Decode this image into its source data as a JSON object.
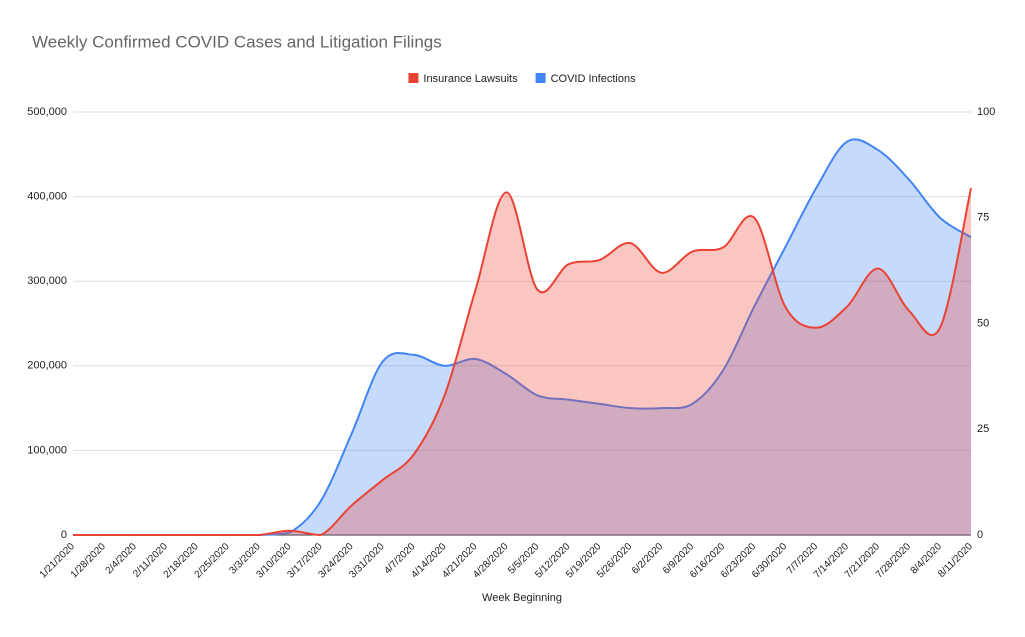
{
  "chart_data": {
    "type": "area",
    "title": "Weekly Confirmed COVID Cases and Litigation Filings",
    "x_label": "Week Beginning",
    "legend": "top",
    "grid": true,
    "categories": [
      "1/21/2020",
      "1/28/2020",
      "2/4/2020",
      "2/11/2020",
      "2/18/2020",
      "2/25/2020",
      "3/3/2020",
      "3/10/2020",
      "3/17/2020",
      "3/24/2020",
      "3/31/2020",
      "4/7/2020",
      "4/14/2020",
      "4/21/2020",
      "4/28/2020",
      "5/5/2020",
      "5/12/2020",
      "5/19/2020",
      "5/26/2020",
      "6/2/2020",
      "6/9/2020",
      "6/16/2020",
      "6/23/2020",
      "6/30/2020",
      "7/7/2020",
      "7/14/2020",
      "7/21/2020",
      "7/28/2020",
      "8/4/2020",
      "8/11/2020"
    ],
    "series": [
      {
        "name": "Insurance Lawsuits",
        "color": "#ea4335",
        "axis": "y2",
        "values": [
          0,
          0,
          0,
          0,
          0,
          0,
          0,
          1,
          0,
          7,
          13,
          19,
          33,
          58,
          81,
          58,
          64,
          65,
          69,
          62,
          67,
          68,
          75,
          54,
          49,
          54,
          63,
          53,
          49,
          82
        ]
      },
      {
        "name": "COVID Infections",
        "color": "#4285f4",
        "values": [
          0,
          0,
          0,
          0,
          0,
          0,
          0,
          3000,
          40000,
          120000,
          205000,
          213000,
          200000,
          208000,
          190000,
          165000,
          160000,
          155000,
          150000,
          150000,
          155000,
          195000,
          270000,
          340000,
          410000,
          465000,
          455000,
          420000,
          375000,
          352000
        ]
      }
    ],
    "ylim": [
      0,
      500000
    ],
    "yticks": [
      0,
      {
        "value": 100000,
        "label": "100,000"
      },
      {
        "value": 200000,
        "label": "200,000"
      },
      {
        "value": 300000,
        "label": "300,000"
      },
      {
        "value": 400000,
        "label": "400,000"
      },
      {
        "value": 500000,
        "label": "500,000"
      }
    ],
    "y2lim": [
      0,
      100
    ],
    "y2ticks": [
      0,
      25,
      50,
      75,
      100
    ]
  }
}
